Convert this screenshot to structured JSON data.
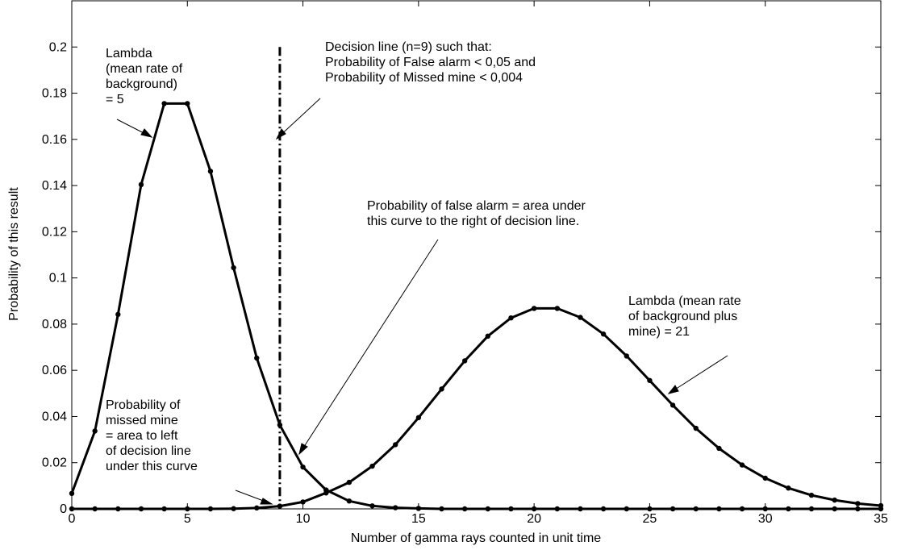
{
  "chart_data": {
    "type": "line",
    "title": "",
    "xlabel": "Number of gamma rays counted in unit time",
    "ylabel": "Probability of this result",
    "xlim": [
      0,
      35
    ],
    "ylim": [
      0,
      0.22
    ],
    "xticks": [
      0,
      5,
      10,
      15,
      20,
      25,
      30,
      35
    ],
    "xtick_labels": [
      "0",
      "5",
      "10",
      "15",
      "20",
      "25",
      "30",
      "35"
    ],
    "yticks": [
      0,
      0.02,
      0.04,
      0.06,
      0.08,
      0.1,
      0.12,
      0.14,
      0.16,
      0.18,
      0.2
    ],
    "ytick_labels": [
      "0",
      "0.02",
      "0.04",
      "0.06",
      "0.08",
      "0.1",
      "0.12",
      "0.14",
      "0.16",
      "0.18",
      "0.2"
    ],
    "grid": false,
    "x": [
      0,
      1,
      2,
      3,
      4,
      5,
      6,
      7,
      8,
      9,
      10,
      11,
      12,
      13,
      14,
      15,
      16,
      17,
      18,
      19,
      20,
      21,
      22,
      23,
      24,
      25,
      26,
      27,
      28,
      29,
      30,
      31,
      32,
      33,
      34,
      35
    ],
    "series": [
      {
        "values": [
          0.0067,
          0.0337,
          0.0842,
          0.1404,
          0.1755,
          0.1755,
          0.1462,
          0.1044,
          0.0653,
          0.0363,
          0.0181,
          0.0082,
          0.0034,
          0.0013,
          0.0005,
          0.0002,
          0.0,
          0.0,
          0.0,
          0.0,
          0.0,
          0.0,
          0.0,
          0.0,
          0.0,
          0.0,
          0.0,
          0.0,
          0.0,
          0.0,
          0.0,
          0.0,
          0.0,
          0.0,
          0.0,
          0.0
        ]
      },
      {
        "values": [
          0.0,
          0.0,
          0.0,
          0.0,
          0.0,
          0.0,
          0.0,
          0.0001,
          0.0004,
          0.0012,
          0.003,
          0.0069,
          0.0115,
          0.0185,
          0.0278,
          0.0395,
          0.0519,
          0.0641,
          0.0748,
          0.0827,
          0.0868,
          0.0868,
          0.0829,
          0.0757,
          0.0662,
          0.0556,
          0.0449,
          0.0349,
          0.0262,
          0.019,
          0.0133,
          0.009,
          0.0059,
          0.0038,
          0.0023,
          0.0014
        ]
      }
    ],
    "decision_line_x": 9,
    "decision_line_top": 0.2,
    "annotations": [
      {
        "lines": [
          "Lambda",
          "(mean rate of",
          "background)",
          "= 5"
        ]
      },
      {
        "lines": [
          "Decision line (n=9) such that:",
          "Probability of False alarm  < 0,05 and",
          "Probability of Missed mine < 0,004"
        ]
      },
      {
        "lines": [
          "Probability of false alarm = area under",
          "this curve to the right of decision line."
        ]
      },
      {
        "lines": [
          "Lambda (mean rate",
          "of background plus",
          "mine) = 21"
        ]
      },
      {
        "lines": [
          "Probability of",
          "missed mine",
          "= area to left",
          "of decision line",
          "under this curve"
        ]
      }
    ]
  }
}
